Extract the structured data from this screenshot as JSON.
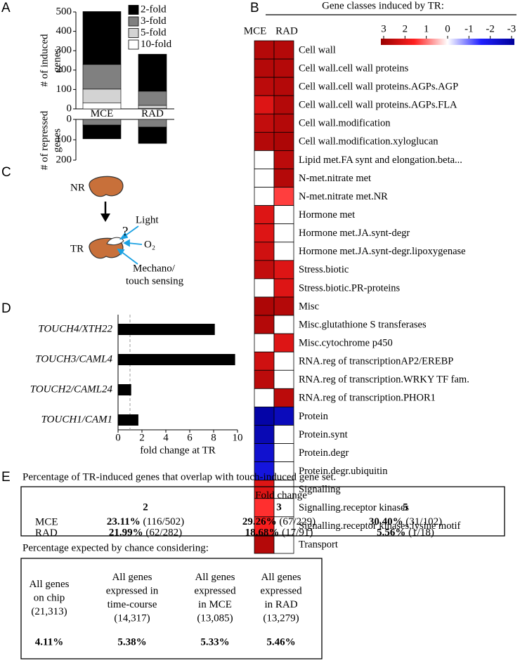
{
  "panel_labels": [
    "A",
    "B",
    "C",
    "D",
    "E"
  ],
  "chart_data": [
    {
      "type": "stacked_bar",
      "categories": [
        "MCE",
        "RAD"
      ],
      "ylabel": [
        "# of induced",
        "genes"
      ],
      "ylim": [
        0,
        500
      ],
      "yticks": [
        0,
        100,
        200,
        300,
        400,
        500
      ],
      "repressed_ylabel": [
        "# of repressed",
        "genes"
      ],
      "repressed_ylim": [
        0,
        200
      ],
      "repressed_yticks": [
        0,
        100,
        200
      ],
      "series": [
        {
          "name": "2-fold",
          "color": "#000000",
          "values": [
            273,
            191
          ],
          "repressed": [
            67,
            80
          ]
        },
        {
          "name": "3-fold",
          "color": "#808080",
          "values": [
            127,
            73
          ],
          "repressed": [
            28,
            38
          ]
        },
        {
          "name": "5-fold",
          "color": "#d3d3d3",
          "values": [
            72,
            15
          ],
          "repressed": [
            0,
            0
          ]
        },
        {
          "name": "10-fold",
          "color": "#ffffff",
          "values": [
            30,
            3
          ],
          "repressed": [
            0,
            0
          ]
        }
      ]
    },
    {
      "type": "heatmap",
      "title": "Gene classes induced by TR:",
      "columns": [
        "MCE",
        "RAD"
      ],
      "colors": {
        "high": "#990000",
        "mid_high": "#ff2020",
        "mid": "#ffffff",
        "mid_low": "#2020ff",
        "low": "#000099"
      },
      "clim": [
        3,
        -3
      ],
      "cticks": [
        3,
        2,
        1,
        0,
        -1,
        -2,
        -3
      ],
      "rows": [
        "Cell wall",
        "Cell wall.cell wall proteins",
        "Cell wall.cell wall proteins.AGPs.AGP",
        "Cell wall.cell wall proteins.AGPs.FLA",
        "Cell wall.modification",
        "Cell wall.modification.xyloglucan",
        "Lipid met.FA synt and elongation.beta...",
        "N-met.nitrate met",
        "N-met.nitrate met.NR",
        "Hormone met",
        "Hormone met.JA.synt-degr",
        "Hormone met.JA.synt-degr.lipoxygenase",
        "Stress.biotic",
        "Stress.biotic.PR-proteins",
        "Misc",
        "Misc.glutathione S transferases",
        "Misc.cytochrome p450",
        "RNA.reg of transcriptionAP2/EREBP",
        "RNA.reg of transcription.WRKY TF fam.",
        "RNA.reg of transcription.PHOR1",
        "Protein",
        "Protein.synt",
        "Protein.degr",
        "Protein.degr.ubiquitin",
        "Signalling",
        "Signalling.receptor kinases",
        "Signalling.receptor kinases.lysine motif",
        "Transport"
      ],
      "values": [
        [
          2.6,
          2.6
        ],
        [
          2.6,
          2.6
        ],
        [
          2.5,
          2.6
        ],
        [
          2.0,
          2.6
        ],
        [
          2.4,
          2.6
        ],
        [
          2.6,
          2.7
        ],
        [
          0,
          2.5
        ],
        [
          0,
          2.6
        ],
        [
          0,
          1.3
        ],
        [
          2.0,
          0
        ],
        [
          2.0,
          0
        ],
        [
          2.2,
          0
        ],
        [
          2.4,
          2.0
        ],
        [
          0,
          2.0
        ],
        [
          2.7,
          2.6
        ],
        [
          2.6,
          0
        ],
        [
          0,
          2.0
        ],
        [
          2.2,
          0
        ],
        [
          2.5,
          0
        ],
        [
          0,
          2.5
        ],
        [
          -2.8,
          -2.5
        ],
        [
          -2.6,
          0
        ],
        [
          -2.2,
          0
        ],
        [
          -2.0,
          0
        ],
        [
          2.0,
          0
        ],
        [
          1.4,
          0
        ],
        [
          1.6,
          0
        ],
        [
          2.6,
          0
        ]
      ]
    },
    {
      "type": "barh",
      "categories": [
        "TOUCH4/XTH22",
        "TOUCH3/CAML4",
        "TOUCH2/CAML24",
        "TOUCH1/CAM1"
      ],
      "values": [
        8.1,
        9.8,
        1.1,
        1.7
      ],
      "color": "#000000",
      "xlim": [
        0,
        10
      ],
      "xticks": [
        0,
        2,
        4,
        6,
        8,
        10
      ],
      "xlabel": "fold change at TR",
      "reference_line": 1
    }
  ],
  "diagram": {
    "nr": "NR",
    "tr": "TR",
    "light": "Light",
    "question": "?",
    "oxygen": "O₂",
    "sensing": [
      "Mechano/",
      "touch sensing"
    ]
  },
  "overlap_table": {
    "title": "Percentage of TR-induced genes that overlap with touch-induced gene set.",
    "group_header": "Fold change",
    "columns": [
      2,
      3,
      5
    ],
    "rows": [
      {
        "label": "MCE",
        "cells": [
          {
            "pct": "23.11%",
            "count": "(116/502)"
          },
          {
            "pct": "29.26%",
            "count": "(67/229)"
          },
          {
            "pct": "30.40%",
            "count": "(31/102)"
          }
        ]
      },
      {
        "label": "RAD",
        "cells": [
          {
            "pct": "21.99%",
            "count": "(62/282)"
          },
          {
            "pct": "18.68%",
            "count": "(17/91)"
          },
          {
            "pct": "5.56%",
            "count": "(1/18)"
          }
        ]
      }
    ]
  },
  "chance_table": {
    "title": "Percentage expected by chance considering:",
    "columns": [
      [
        "All genes",
        "on chip",
        "(21,313)"
      ],
      [
        "All genes",
        "expressed in",
        "time-course",
        "(14,317)"
      ],
      [
        "All genes",
        "expressed",
        "in MCE",
        "(13,085)"
      ],
      [
        "All genes",
        "expressed",
        "in RAD",
        "(13,279)"
      ]
    ],
    "values": [
      "4.11%",
      "5.38%",
      "5.33%",
      "5.46%"
    ]
  }
}
